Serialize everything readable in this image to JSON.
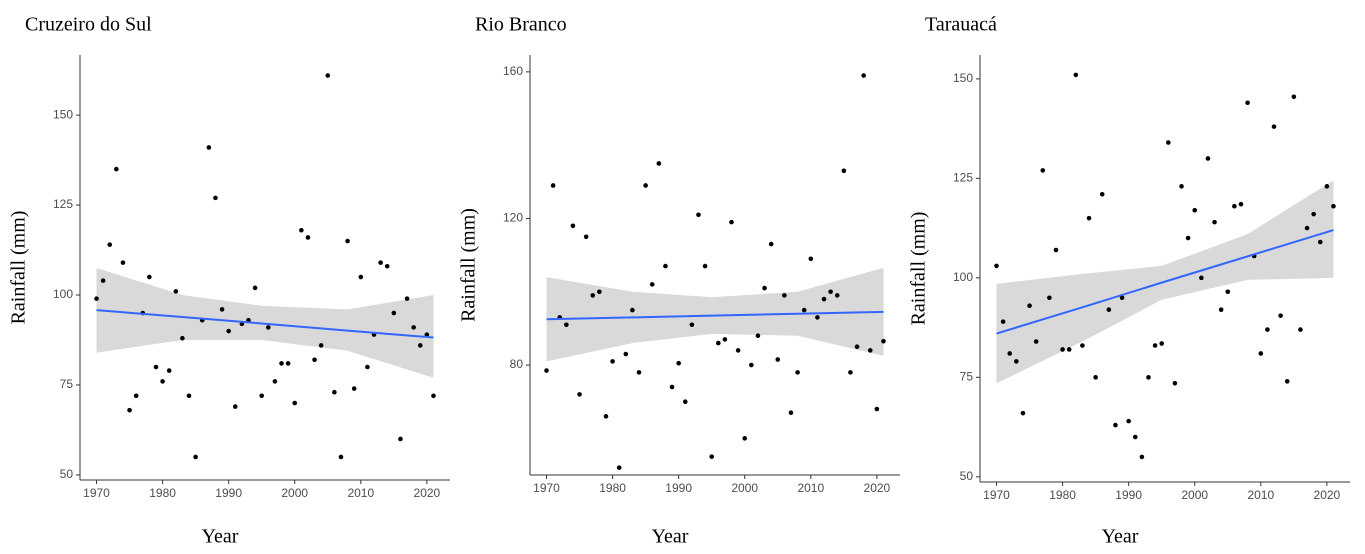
{
  "chart_data": [
    {
      "type": "scatter",
      "title": "Cruzeiro do Sul",
      "xlabel": "Year",
      "ylabel": "Rainfall (mm)",
      "x": [
        1970,
        1971,
        1972,
        1973,
        1974,
        1975,
        1976,
        1977,
        1978,
        1979,
        1980,
        1981,
        1982,
        1983,
        1984,
        1985,
        1986,
        1987,
        1988,
        1989,
        1990,
        1991,
        1992,
        1993,
        1994,
        1995,
        1996,
        1997,
        1998,
        1999,
        2000,
        2001,
        2002,
        2003,
        2004,
        2005,
        2006,
        2007,
        2008,
        2009,
        2010,
        2011,
        2012,
        2013,
        2014,
        2015,
        2016,
        2017,
        2018,
        2019,
        2020,
        2021
      ],
      "values": [
        99,
        104,
        114,
        135,
        109,
        68,
        72,
        95,
        105,
        80,
        76,
        79,
        101,
        88,
        72,
        55,
        93,
        141,
        127,
        96,
        90,
        69,
        92,
        93,
        102,
        72,
        91,
        76,
        81,
        81,
        70,
        118,
        116,
        82,
        86,
        161,
        73,
        55,
        115,
        74,
        105,
        80,
        89,
        109,
        108,
        95,
        60,
        99,
        91,
        86,
        89,
        72
      ],
      "color": "#000000",
      "fit": {
        "x": [
          1970,
          1983,
          1995,
          2008,
          2021
        ],
        "values": [
          95.8,
          93.9,
          92.1,
          90.1,
          88.2
        ],
        "lower": [
          84,
          87.5,
          87.5,
          84.5,
          77
        ],
        "upper": [
          107.5,
          100,
          97,
          96,
          100
        ],
        "color": "#3366ff",
        "band_color": "#d9d9d9"
      },
      "xlim": [
        1967.5,
        2023.5
      ],
      "xticks": [
        1970,
        1980,
        1990,
        2000,
        2010,
        2020
      ],
      "ylim": [
        48.6,
        166.7
      ],
      "yticks": [
        50,
        75,
        100,
        125,
        150
      ]
    },
    {
      "type": "scatter",
      "title": "Rio Branco",
      "xlabel": "Year",
      "ylabel": "Rainfall (mm)",
      "x": [
        1970,
        1971,
        1972,
        1973,
        1974,
        1975,
        1976,
        1977,
        1978,
        1979,
        1980,
        1981,
        1982,
        1983,
        1984,
        1985,
        1986,
        1987,
        1988,
        1989,
        1990,
        1991,
        1992,
        1993,
        1994,
        1995,
        1996,
        1997,
        1998,
        1999,
        2000,
        2001,
        2002,
        2003,
        2004,
        2005,
        2006,
        2007,
        2008,
        2009,
        2010,
        2011,
        2012,
        2013,
        2014,
        2015,
        2016,
        2017,
        2018,
        2019,
        2020,
        2021
      ],
      "values": [
        78.5,
        129,
        93,
        91,
        118,
        72,
        115,
        99,
        100,
        66,
        81,
        52,
        83,
        95,
        78,
        129,
        102,
        135,
        107,
        74,
        80.5,
        70,
        91,
        121,
        107,
        55,
        86,
        87,
        119,
        84,
        60,
        80,
        88,
        101,
        113,
        81.5,
        99,
        67,
        78,
        95,
        109,
        93,
        98,
        100,
        99,
        133,
        78,
        85,
        159,
        84,
        68,
        86.5
      ],
      "color": "#000000",
      "fit": {
        "x": [
          1970,
          1983,
          1995,
          2008,
          2021
        ],
        "values": [
          92.5,
          93,
          93.5,
          94,
          94.5
        ],
        "lower": [
          81,
          86,
          88.5,
          88,
          82.5
        ],
        "upper": [
          104,
          100,
          98.5,
          100,
          106.5
        ],
        "color": "#3366ff",
        "band_color": "#d9d9d9"
      },
      "xlim": [
        1967.5,
        2023.5
      ],
      "xticks": [
        1970,
        1980,
        1990,
        2000,
        2010,
        2020
      ],
      "ylim": [
        50,
        164.6
      ],
      "yticks": [
        80,
        120,
        160
      ]
    },
    {
      "type": "scatter",
      "title": "Tarauacá",
      "xlabel": "Year",
      "ylabel": "Rainfall (mm)",
      "x": [
        1970,
        1971,
        1972,
        1973,
        1974,
        1975,
        1976,
        1977,
        1978,
        1979,
        1980,
        1981,
        1982,
        1983,
        1984,
        1985,
        1986,
        1987,
        1988,
        1989,
        1990,
        1991,
        1992,
        1993,
        1994,
        1995,
        1996,
        1997,
        1998,
        1999,
        2000,
        2001,
        2002,
        2003,
        2004,
        2005,
        2006,
        2007,
        2008,
        2009,
        2010,
        2011,
        2012,
        2013,
        2014,
        2015,
        2016,
        2017,
        2018,
        2019,
        2020,
        2021
      ],
      "values": [
        103,
        89,
        81,
        79,
        66,
        93,
        84,
        127,
        95,
        107,
        82,
        82,
        151,
        83,
        115,
        75,
        121,
        92,
        63,
        95,
        64,
        60,
        55,
        75,
        83,
        83.5,
        134,
        73.5,
        123,
        110,
        117,
        100,
        130,
        114,
        92,
        96.5,
        118,
        118.5,
        144,
        105.5,
        81,
        87,
        138,
        90.5,
        74,
        145.5,
        87,
        112.5,
        116,
        109,
        123,
        118
      ],
      "color": "#000000",
      "fit": {
        "x": [
          1970,
          1983,
          1995,
          2008,
          2021
        ],
        "values": [
          86,
          92.6,
          98.8,
          105.4,
          112
        ],
        "lower": [
          73.5,
          84,
          94.5,
          99.5,
          100
        ],
        "upper": [
          98.5,
          101,
          103,
          111,
          124.5
        ],
        "color": "#3366ff",
        "band_color": "#d9d9d9"
      },
      "xlim": [
        1967.5,
        2023.5
      ],
      "xticks": [
        1970,
        1980,
        1990,
        2000,
        2010,
        2020
      ],
      "ylim": [
        48.7,
        156
      ],
      "yticks": [
        50,
        75,
        100,
        125,
        150
      ]
    }
  ]
}
